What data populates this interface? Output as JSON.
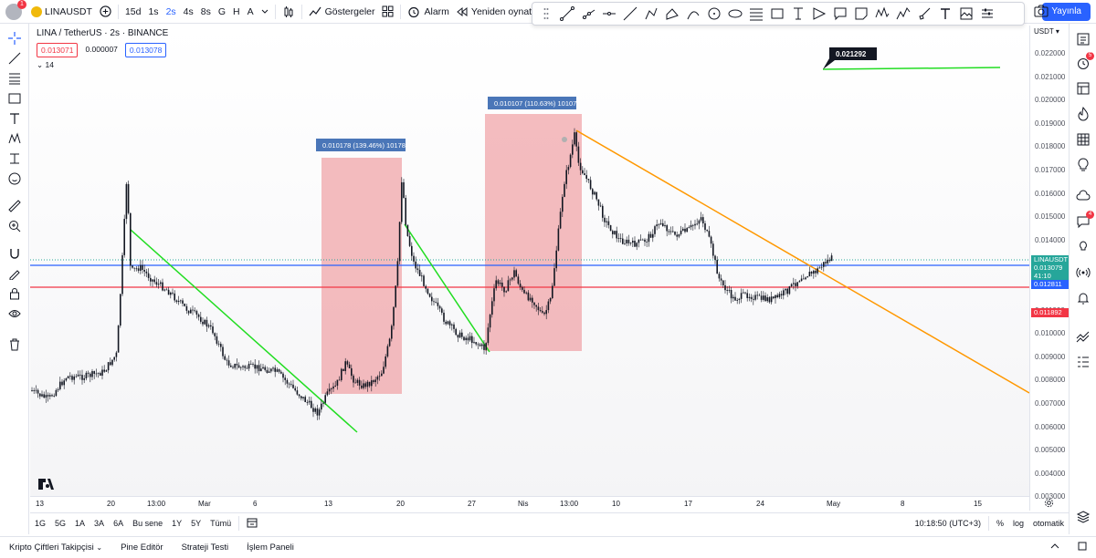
{
  "topbar": {
    "symbol": "LINAUSDT",
    "notif_count": "1",
    "timeframes": [
      "15d",
      "1s",
      "2s",
      "4s",
      "8s",
      "G",
      "H",
      "A"
    ],
    "active_timeframe": "2s",
    "indicators_label": "Göstergeler",
    "alert_label": "Alarm",
    "replay_label": "Yeniden oynat",
    "publish_label": "Yayınla"
  },
  "legend": {
    "title": "LINA / TetherUS · 2s · BINANCE",
    "val1": "0.013071",
    "val2": "0.000007",
    "val3": "0.013078",
    "indicator": "14"
  },
  "chart_data": {
    "type": "candlestick",
    "symbol": "LINAUSDT",
    "price_axis_label": "USDT",
    "y_ticks": [
      "0.022000",
      "0.021000",
      "0.020000",
      "0.019000",
      "0.018000",
      "0.017000",
      "0.016000",
      "0.015000",
      "0.014000",
      "0.013000",
      "0.012000",
      "0.011000",
      "0.010000",
      "0.009000",
      "0.008000",
      "0.007000",
      "0.006000",
      "0.005000",
      "0.004000",
      "0.003000"
    ],
    "x_ticks": [
      "13",
      "20",
      "13:00",
      "Mar",
      "6",
      "13",
      "20",
      "27",
      "Nis",
      "13:00",
      "10",
      "17",
      "24",
      "May",
      "8",
      "15"
    ],
    "last_price": "0.013079",
    "countdown": "41:10",
    "blue_line_price": "0.012811",
    "red_line_price": "0.011892",
    "range_box_1_label": "0.010178 (139.46%) 10178",
    "range_box_2_label": "0.010107 (110.63%) 10107",
    "target_label": "0.021292",
    "ylim": [
      0.003,
      0.0225
    ]
  },
  "bottom_toolbar": {
    "ranges": [
      "1G",
      "5G",
      "1A",
      "3A",
      "6A",
      "Bu sene",
      "1Y",
      "5Y",
      "Tümü"
    ],
    "time": "10:18:50 (UTC+3)",
    "percent": "%",
    "log": "log",
    "auto": "otomatik"
  },
  "bottom_panel": {
    "tabs": [
      "Kripto Çiftleri Takipçisi",
      "Pine Editör",
      "Strateji Testi",
      "İşlem Paneli"
    ]
  },
  "right_panel_badges": {
    "alerts": "5",
    "chat": "4"
  }
}
